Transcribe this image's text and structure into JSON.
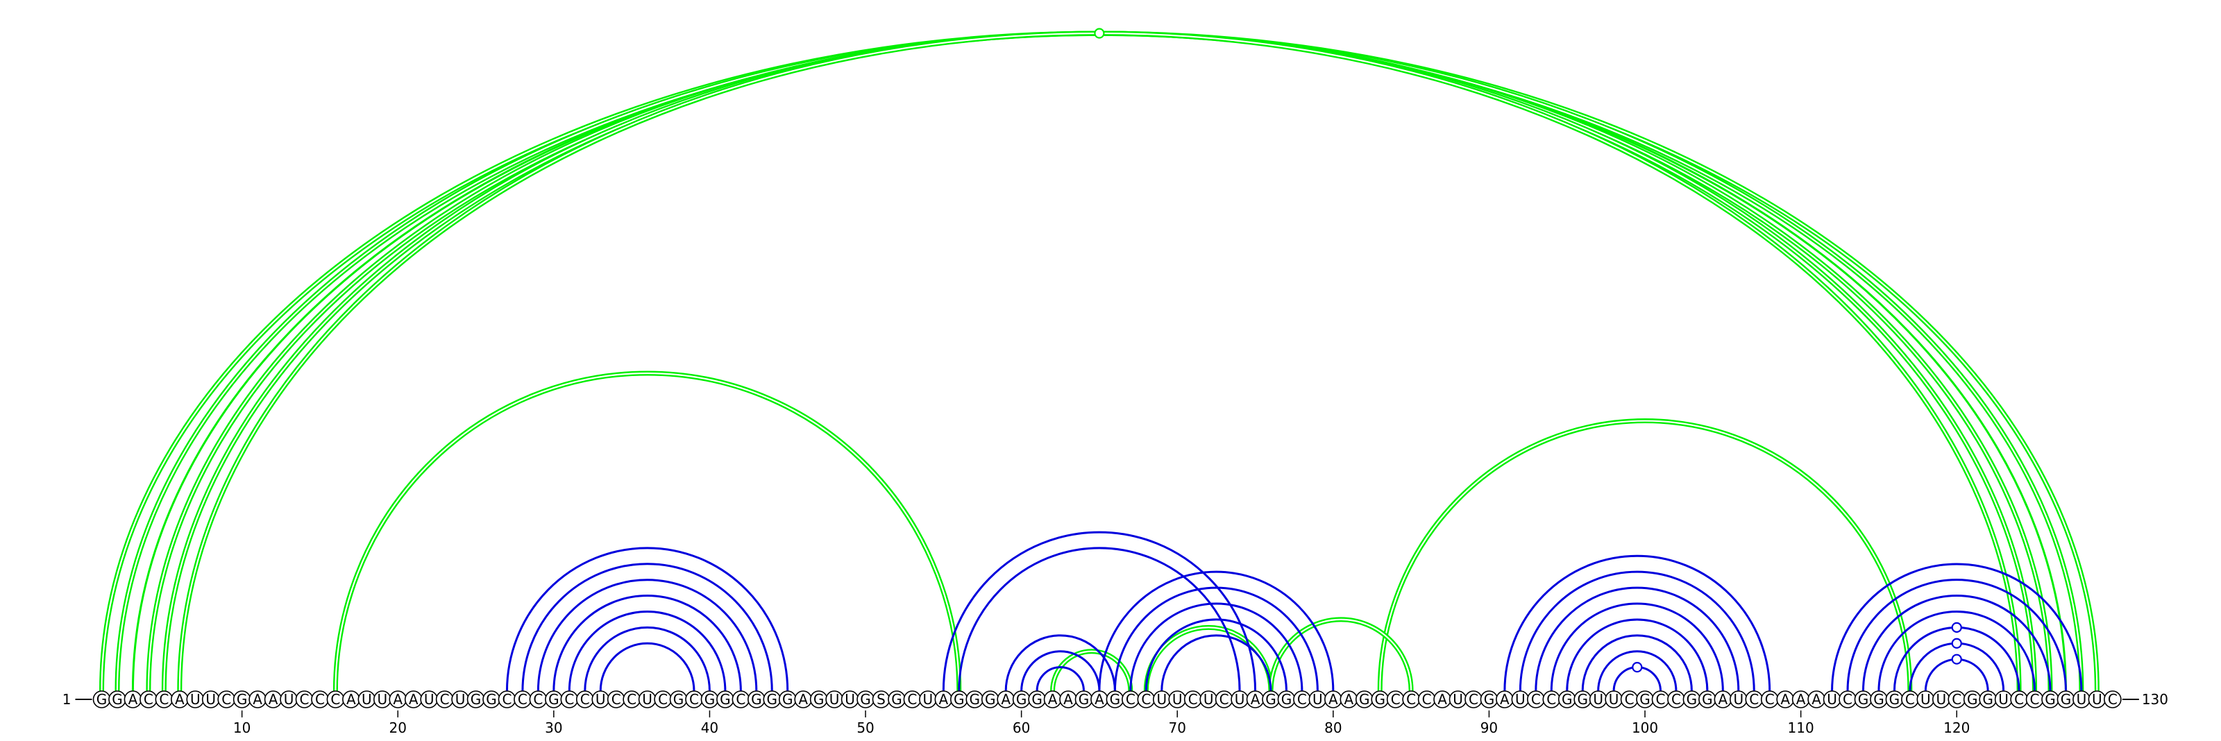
{
  "diagram": {
    "type": "rna_arc_diagram",
    "sequence": "GGACCAUUCGAAUCCCAUUAAUCUGGCCCGCCUCCUCGCGGCGGGAGUUGSGCUAGGGAGGAAGAGCCUUCUCUAGGCUAAGGCCCAUCGAUCCGGUUCGCCGGAUCCAAAUCGGGCUUCGGUCCGGUUC",
    "length": 130,
    "start_label": "1",
    "end_label": "130",
    "ticks": [
      10,
      20,
      30,
      40,
      50,
      60,
      70,
      80,
      90,
      100,
      110,
      120
    ],
    "colors": {
      "blue": "#0000dd",
      "green": "#00ee00",
      "nucleotide_fill": "#ffffff",
      "nucleotide_stroke": "#000000"
    },
    "arcs": [
      {
        "i": 1,
        "j": 129,
        "color": "green",
        "style": "double"
      },
      {
        "i": 2,
        "j": 128,
        "color": "green",
        "style": "double"
      },
      {
        "i": 3,
        "j": 127,
        "color": "green",
        "style": "single"
      },
      {
        "i": 4,
        "j": 126,
        "color": "green",
        "style": "double"
      },
      {
        "i": 5,
        "j": 125,
        "color": "green",
        "style": "double"
      },
      {
        "i": 6,
        "j": 124,
        "color": "green",
        "style": "double"
      },
      {
        "i": 16,
        "j": 56,
        "color": "green",
        "style": "double"
      },
      {
        "i": 83,
        "j": 117,
        "color": "green",
        "style": "double"
      },
      {
        "i": 62,
        "j": 67,
        "color": "green",
        "style": "double"
      },
      {
        "i": 68,
        "j": 76,
        "color": "green",
        "style": "double"
      },
      {
        "i": 76,
        "j": 85,
        "color": "green",
        "style": "double"
      },
      {
        "i": 27,
        "j": 45,
        "color": "blue",
        "style": "single"
      },
      {
        "i": 28,
        "j": 44,
        "color": "blue",
        "style": "single"
      },
      {
        "i": 29,
        "j": 43,
        "color": "blue",
        "style": "single"
      },
      {
        "i": 30,
        "j": 42,
        "color": "blue",
        "style": "single"
      },
      {
        "i": 31,
        "j": 41,
        "color": "blue",
        "style": "single"
      },
      {
        "i": 32,
        "j": 40,
        "color": "blue",
        "style": "single"
      },
      {
        "i": 33,
        "j": 39,
        "color": "blue",
        "style": "single"
      },
      {
        "i": 55,
        "j": 75,
        "color": "blue",
        "style": "single"
      },
      {
        "i": 56,
        "j": 74,
        "color": "blue",
        "style": "single"
      },
      {
        "i": 59,
        "j": 66,
        "color": "blue",
        "style": "single"
      },
      {
        "i": 60,
        "j": 65,
        "color": "blue",
        "style": "single"
      },
      {
        "i": 61,
        "j": 64,
        "color": "blue",
        "style": "single"
      },
      {
        "i": 65,
        "j": 80,
        "color": "blue",
        "style": "single"
      },
      {
        "i": 66,
        "j": 79,
        "color": "blue",
        "style": "single"
      },
      {
        "i": 67,
        "j": 78,
        "color": "blue",
        "style": "single"
      },
      {
        "i": 68,
        "j": 77,
        "color": "blue",
        "style": "single"
      },
      {
        "i": 69,
        "j": 76,
        "color": "blue",
        "style": "single"
      },
      {
        "i": 91,
        "j": 108,
        "color": "blue",
        "style": "single"
      },
      {
        "i": 92,
        "j": 107,
        "color": "blue",
        "style": "single"
      },
      {
        "i": 93,
        "j": 106,
        "color": "blue",
        "style": "single"
      },
      {
        "i": 94,
        "j": 105,
        "color": "blue",
        "style": "single"
      },
      {
        "i": 95,
        "j": 104,
        "color": "blue",
        "style": "single"
      },
      {
        "i": 96,
        "j": 103,
        "color": "blue",
        "style": "single"
      },
      {
        "i": 97,
        "j": 102,
        "color": "blue",
        "style": "single"
      },
      {
        "i": 98,
        "j": 101,
        "color": "blue",
        "style": "single"
      },
      {
        "i": 112,
        "j": 128,
        "color": "blue",
        "style": "single"
      },
      {
        "i": 113,
        "j": 127,
        "color": "blue",
        "style": "single"
      },
      {
        "i": 114,
        "j": 126,
        "color": "blue",
        "style": "single"
      },
      {
        "i": 115,
        "j": 125,
        "color": "blue",
        "style": "single"
      },
      {
        "i": 116,
        "j": 124,
        "color": "blue",
        "style": "single"
      },
      {
        "i": 117,
        "j": 123,
        "color": "blue",
        "style": "single"
      },
      {
        "i": 118,
        "j": 122,
        "color": "blue",
        "style": "single"
      }
    ],
    "markers": [
      {
        "i": 1,
        "j": 129,
        "color": "green"
      },
      {
        "i": 98,
        "j": 101,
        "color": "blue"
      },
      {
        "i": 116,
        "j": 124,
        "color": "blue"
      },
      {
        "i": 117,
        "j": 123,
        "color": "blue"
      },
      {
        "i": 118,
        "j": 122,
        "color": "blue"
      }
    ]
  }
}
